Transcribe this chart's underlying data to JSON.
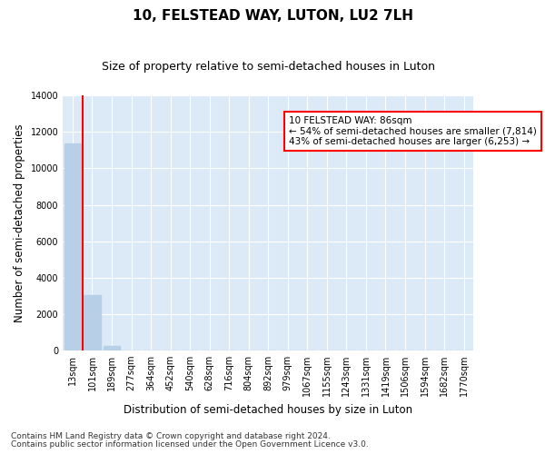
{
  "title": "10, FELSTEAD WAY, LUTON, LU2 7LH",
  "subtitle": "Size of property relative to semi-detached houses in Luton",
  "xlabel": "Distribution of semi-detached houses by size in Luton",
  "ylabel": "Number of semi-detached properties",
  "categories": [
    "13sqm",
    "101sqm",
    "189sqm",
    "277sqm",
    "364sqm",
    "452sqm",
    "540sqm",
    "628sqm",
    "716sqm",
    "804sqm",
    "892sqm",
    "979sqm",
    "1067sqm",
    "1155sqm",
    "1243sqm",
    "1331sqm",
    "1419sqm",
    "1506sqm",
    "1594sqm",
    "1682sqm",
    "1770sqm"
  ],
  "values": [
    11350,
    3020,
    220,
    0,
    0,
    0,
    0,
    0,
    0,
    0,
    0,
    0,
    0,
    0,
    0,
    0,
    0,
    0,
    0,
    0,
    0
  ],
  "bar_color": "#b8cfe8",
  "ylim": [
    0,
    14000
  ],
  "yticks": [
    0,
    2000,
    4000,
    6000,
    8000,
    10000,
    12000,
    14000
  ],
  "annotation_title": "10 FELSTEAD WAY: 86sqm",
  "annotation_line1": "← 54% of semi-detached houses are smaller (7,814)",
  "annotation_line2": "43% of semi-detached houses are larger (6,253) →",
  "footnote1": "Contains HM Land Registry data © Crown copyright and database right 2024.",
  "footnote2": "Contains public sector information licensed under the Open Government Licence v3.0.",
  "fig_bg_color": "#ffffff",
  "plot_bg_color": "#dce9f7",
  "grid_color": "#ffffff",
  "title_fontsize": 11,
  "subtitle_fontsize": 9,
  "axis_label_fontsize": 8.5,
  "tick_fontsize": 7,
  "footnote_fontsize": 6.5
}
